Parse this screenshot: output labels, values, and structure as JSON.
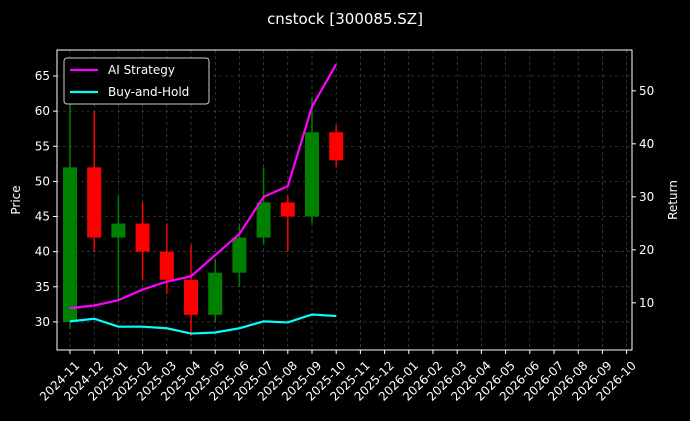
{
  "chart_data": {
    "type": "candlestick",
    "title": "cnstock [300085.SZ]",
    "ylabel": "Price",
    "y2label": "Return",
    "xticks": [
      "2024-11",
      "2024-12",
      "2025-01",
      "2025-02",
      "2025-03",
      "2025-04",
      "2025-05",
      "2025-06",
      "2025-07",
      "2025-08",
      "2025-09",
      "2025-10",
      "2025-11",
      "2025-12",
      "2026-01",
      "2026-02",
      "2026-03",
      "2026-04",
      "2026-05",
      "2026-06",
      "2026-07",
      "2026-08",
      "2026-09",
      "2026-10"
    ],
    "x": [
      "2024-11",
      "2024-12",
      "2025-01",
      "2025-02",
      "2025-03",
      "2025-04",
      "2025-05",
      "2025-06",
      "2025-07",
      "2025-08",
      "2025-09",
      "2025-10"
    ],
    "open": [
      30,
      52,
      42,
      44,
      40,
      36,
      31,
      37,
      42,
      47,
      45,
      57
    ],
    "high": [
      62,
      60,
      48,
      47,
      44,
      41,
      39,
      44,
      52,
      48,
      62,
      58
    ],
    "low": [
      29,
      40,
      33,
      36,
      34,
      28,
      30,
      35,
      41,
      40,
      44,
      52
    ],
    "close": [
      52,
      42,
      44,
      40,
      36,
      31,
      37,
      42,
      47,
      45,
      57,
      53
    ],
    "up_color": "#008000",
    "down_color": "#ff0000",
    "ylim": [
      26,
      68.7
    ],
    "yticks": [
      30,
      35,
      40,
      45,
      50,
      55,
      60,
      65
    ],
    "y2lim": [
      1.1,
      57.7
    ],
    "y2ticks": [
      10,
      20,
      30,
      40,
      50
    ],
    "series": [
      {
        "name": "AI Strategy",
        "color": "#ff00ff",
        "axis": "y2",
        "values": [
          9,
          9.5,
          10.5,
          12.5,
          14,
          15,
          19,
          23,
          30,
          32,
          47,
          55
        ]
      },
      {
        "name": "Buy-and-Hold",
        "color": "#00ffff",
        "axis": "y2",
        "values": [
          6.5,
          7,
          5.5,
          5.5,
          5.2,
          4.2,
          4.4,
          5.2,
          6.5,
          6.3,
          7.8,
          7.5
        ]
      }
    ],
    "grid": true,
    "legend": "upper left"
  }
}
